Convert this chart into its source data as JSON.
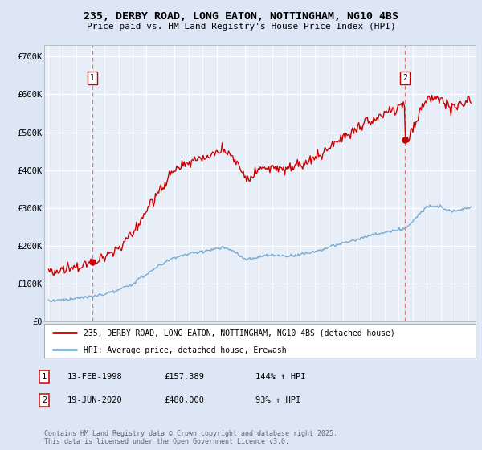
{
  "title_line1": "235, DERBY ROAD, LONG EATON, NOTTINGHAM, NG10 4BS",
  "title_line2": "Price paid vs. HM Land Registry's House Price Index (HPI)",
  "ylim": [
    0,
    730000
  ],
  "yticks": [
    0,
    100000,
    200000,
    300000,
    400000,
    500000,
    600000,
    700000
  ],
  "ytick_labels": [
    "£0",
    "£100K",
    "£200K",
    "£300K",
    "£400K",
    "£500K",
    "£600K",
    "£700K"
  ],
  "bg_color": "#dce6f5",
  "plot_bg_color": "#e8eef8",
  "grid_color": "#ffffff",
  "red_color": "#cc0000",
  "blue_color": "#7aaad0",
  "dashed_color": "#dd6666",
  "marker1_date": 1998.11,
  "marker2_date": 2020.46,
  "purchase1_price": 157389,
  "purchase2_price": 480000,
  "legend_label1": "235, DERBY ROAD, LONG EATON, NOTTINGHAM, NG10 4BS (detached house)",
  "legend_label2": "HPI: Average price, detached house, Erewash",
  "ann1_box": "1",
  "ann2_box": "2",
  "ann1_date": "13-FEB-1998",
  "ann1_price": "£157,389",
  "ann1_hpi": "144% ↑ HPI",
  "ann2_date": "19-JUN-2020",
  "ann2_price": "£480,000",
  "ann2_hpi": "93% ↑ HPI",
  "footnote": "Contains HM Land Registry data © Crown copyright and database right 2025.\nThis data is licensed under the Open Government Licence v3.0.",
  "xmin": 1994.7,
  "xmax": 2025.5
}
